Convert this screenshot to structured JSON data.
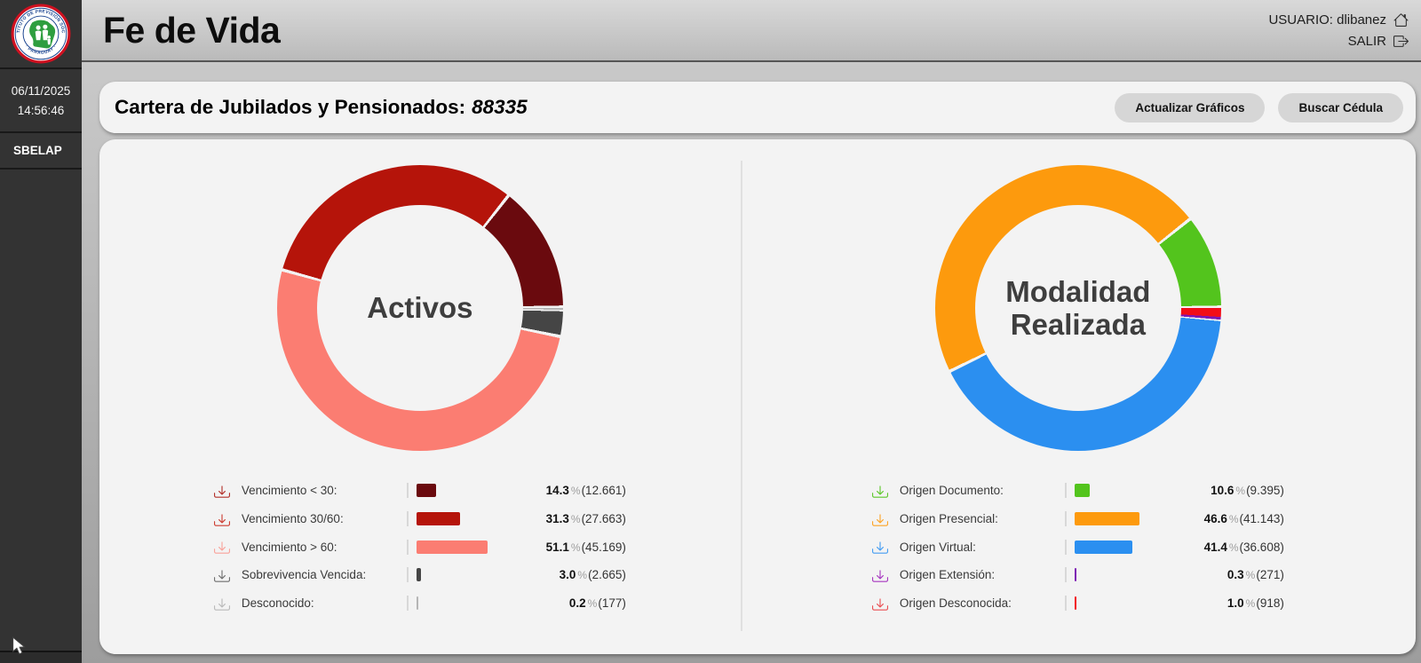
{
  "app": {
    "title": "Fe de Vida"
  },
  "topbar": {
    "user_label": "USUARIO: dlibanez",
    "logout_label": "SALIR"
  },
  "sidebar": {
    "date": "06/11/2025",
    "time": "14:56:46",
    "menu": [
      {
        "label": "SBELAP"
      }
    ],
    "logo": {
      "ring_text_top": "INSTITUTO DE PREVISION SOCIAL",
      "ring_text_bottom": "· PARAGUAY ·"
    }
  },
  "toolbar": {
    "title_label": "Cartera de Jubilados y Pensionados:",
    "title_count": "88335",
    "refresh_button": "Actualizar Gráficos",
    "search_button": "Buscar Cédula"
  },
  "format": {
    "percent_sign": "%"
  },
  "chart_data": [
    {
      "type": "pie",
      "style": "donut",
      "title": "Activos",
      "legend_position": "bottom",
      "start": "3-oclock, rows drawn counterclockwise",
      "rows": [
        {
          "label": "Vencimiento < 30:",
          "pct": 14.3,
          "count": 12661,
          "pct_display": "14.3",
          "count_display": "(12.661)",
          "color": "#6a0a0e",
          "icon_color": "#b33029"
        },
        {
          "label": "Vencimiento 30/60:",
          "pct": 31.3,
          "count": 27663,
          "pct_display": "31.3",
          "count_display": "(27.663)",
          "color": "#b5140a",
          "icon_color": "#cd3d31"
        },
        {
          "label": "Vencimiento > 60:",
          "pct": 51.1,
          "count": 45169,
          "pct_display": "51.1",
          "count_display": "(45.169)",
          "color": "#fb7d72",
          "icon_color": "#f9a29a"
        },
        {
          "label": "Sobrevivencia Vencida:",
          "pct": 3.0,
          "count": 2665,
          "pct_display": "3.0",
          "count_display": "(2.665)",
          "color": "#454545",
          "icon_color": "#6e6e6e"
        },
        {
          "label": "Desconocido:",
          "pct": 0.2,
          "count": 177,
          "pct_display": "0.2",
          "count_display": "(177)",
          "color": "#b5b5b5",
          "icon_color": "#b9b9b9"
        }
      ]
    },
    {
      "type": "pie",
      "style": "donut",
      "title": "Modalidad Realizada",
      "legend_position": "bottom",
      "start": "3-oclock, rows drawn counterclockwise",
      "rows": [
        {
          "label": "Origen Documento:",
          "pct": 10.6,
          "count": 9395,
          "pct_display": "10.6",
          "count_display": "(9.395)",
          "color": "#53c41d",
          "icon_color": "#5ec72a"
        },
        {
          "label": "Origen Presencial:",
          "pct": 46.6,
          "count": 41143,
          "pct_display": "46.6",
          "count_display": "(41.143)",
          "color": "#fd9a0d",
          "icon_color": "#fda426"
        },
        {
          "label": "Origen Virtual:",
          "pct": 41.4,
          "count": 36608,
          "pct_display": "41.4",
          "count_display": "(36.608)",
          "color": "#2b8ff0",
          "icon_color": "#459df2"
        },
        {
          "label": "Origen Extensión:",
          "pct": 0.3,
          "count": 271,
          "pct_display": "0.3",
          "count_display": "(271)",
          "color": "#7d17b4",
          "icon_color": "#a736c0"
        },
        {
          "label": "Origen Desconocida:",
          "pct": 1.0,
          "count": 918,
          "pct_display": "1.0",
          "count_display": "(918)",
          "color": "#f20d18",
          "icon_color": "#e94f53"
        }
      ]
    }
  ]
}
